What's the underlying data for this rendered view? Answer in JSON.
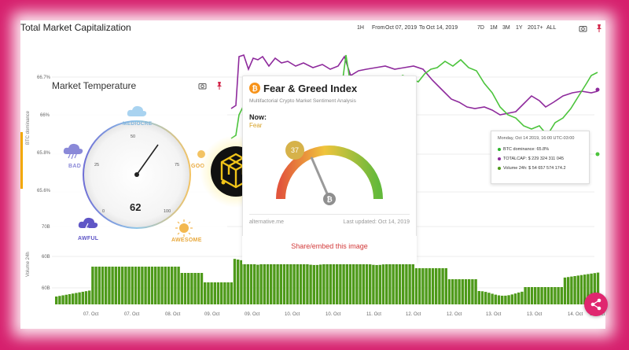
{
  "market_cap": {
    "title": "Total Market Capitalization",
    "range_buttons": [
      "1H",
      "7D",
      "1M",
      "3M",
      "1Y",
      "2017+",
      "ALL"
    ],
    "from_label": "From",
    "from_date": "Oct 07, 2019",
    "to_label": "To",
    "to_date": "Oct 14, 2019",
    "y_labels": [
      "66.7%",
      "66%",
      "65.8%",
      "65.6%",
      "70B",
      "60B",
      "60B"
    ],
    "left_labels": [
      "BTC dominance",
      "Volume 24h"
    ],
    "x_ticks": [
      "07. Oct",
      "07. Oct",
      "08. Oct",
      "09. Oct",
      "09. Oct",
      "10. Oct",
      "10. Oct",
      "11. Oct",
      "12. Oct",
      "12. Oct",
      "13. Oct",
      "13. Oct",
      "14. Oct",
      "14. Oct"
    ]
  },
  "temperature": {
    "title": "Market Temperature",
    "value": "62",
    "labels": {
      "mediocre": "MEDIOCRE",
      "bad": "BAD",
      "good": "GOO",
      "awful": "AWFUL",
      "awesome": "AWESOME"
    },
    "scale": [
      "50",
      "25",
      "75",
      "0",
      "100"
    ]
  },
  "fear_greed": {
    "title": "Fear & Greed Index",
    "subtitle": "Multifactorial Crypto Market Sentiment Analysis",
    "now_label": "Now:",
    "status": "Fear",
    "value": "37",
    "value_fraction": 0.37,
    "source": "alternative.me",
    "updated": "Last updated: Oct 14, 2019",
    "share_label": "Share/embed this image"
  },
  "tooltip": {
    "header": "Monday, Oct 14 2019, 16:00 UTC-03:00",
    "rows": [
      {
        "label": "BTC dominance: 65.8%",
        "color": "#2db52d"
      },
      {
        "label": "TOTALCAP: $ 229 324 311 045",
        "color": "#8e2a9c"
      },
      {
        "label": "Volume 24h: $ 54 657 574 174.2",
        "color": "#4e9a1a"
      }
    ]
  },
  "colors": {
    "frame_bg": "#d61f6d",
    "green_line": "#4cc43c",
    "purple_line": "#8e2a9c",
    "volume_bar": "#4e9a1a",
    "fear": "#d6a025",
    "share_text": "#d23a3a"
  },
  "icons": [
    "camera-icon",
    "pin-icon",
    "cloud-icon",
    "storm-icon",
    "sun-icon",
    "bitcoin-icon",
    "share-icon",
    "logo"
  ]
}
